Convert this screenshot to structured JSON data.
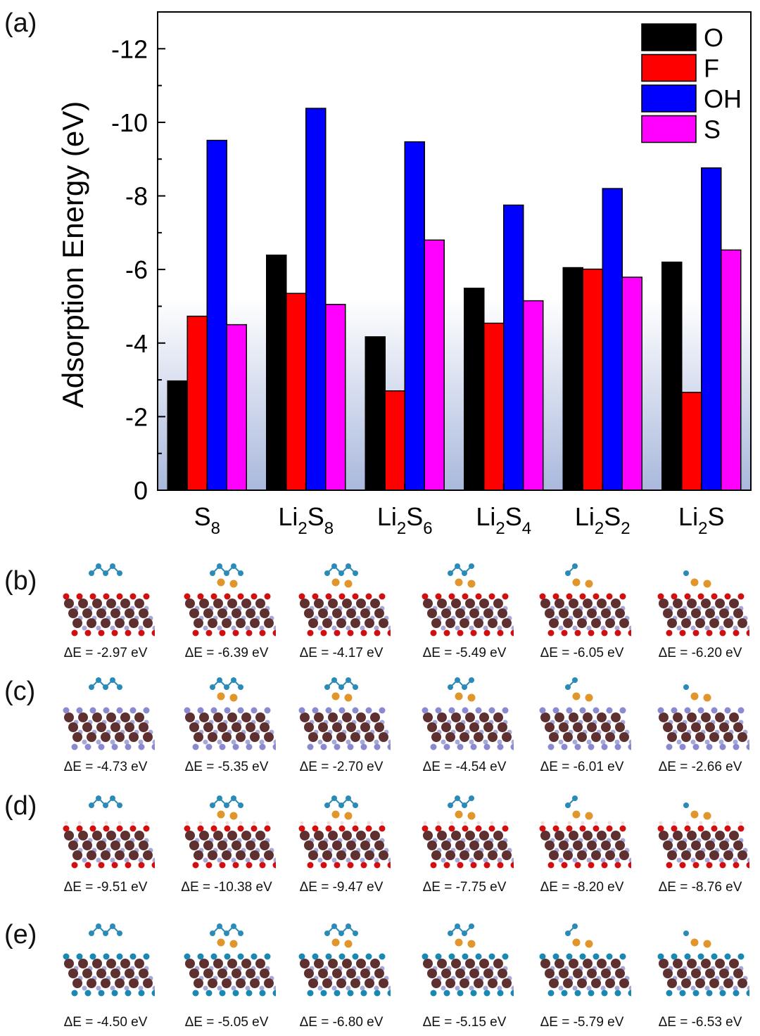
{
  "panel_labels": [
    "(a)",
    "(b)",
    "(c)",
    "(d)",
    "(e)"
  ],
  "chart_data": {
    "type": "bar",
    "title": "",
    "xlabel": "",
    "ylabel": "Adsorption Energy (eV)",
    "ylim": [
      0,
      -13
    ],
    "yticks": [
      0,
      -2,
      -4,
      -6,
      -8,
      -10,
      -12
    ],
    "ytick_labels": [
      "0",
      "-2",
      "-4",
      "-6",
      "-8",
      "-10",
      "-12"
    ],
    "grid": false,
    "legend_position": "top-right",
    "categories": [
      {
        "base": "S",
        "sub": "8",
        "base2": "",
        "sub2": ""
      },
      {
        "base": "Li",
        "sub": "2",
        "base2": "S",
        "sub2": "8"
      },
      {
        "base": "Li",
        "sub": "2",
        "base2": "S",
        "sub2": "6"
      },
      {
        "base": "Li",
        "sub": "2",
        "base2": "S",
        "sub2": "4"
      },
      {
        "base": "Li",
        "sub": "2",
        "base2": "S",
        "sub2": "2"
      },
      {
        "base": "Li",
        "sub": "2",
        "base2": "S",
        "sub2": ""
      }
    ],
    "series": [
      {
        "name": "O",
        "color": "#000000",
        "values": [
          -2.97,
          -6.39,
          -4.17,
          -5.49,
          -6.05,
          -6.2
        ]
      },
      {
        "name": "F",
        "color": "#ff0000",
        "values": [
          -4.73,
          -5.35,
          -2.7,
          -4.54,
          -6.01,
          -2.66
        ]
      },
      {
        "name": "OH",
        "color": "#0000ff",
        "values": [
          -9.51,
          -10.38,
          -9.47,
          -7.75,
          -8.2,
          -8.76
        ]
      },
      {
        "name": "S",
        "color": "#ff00ff",
        "values": [
          -4.5,
          -5.05,
          -6.8,
          -5.15,
          -5.79,
          -6.53
        ]
      }
    ]
  },
  "structure_rows": [
    {
      "termination": "O",
      "labels": [
        "ΔE = -2.97 eV",
        "ΔE = -6.39 eV",
        "ΔE = -4.17 eV",
        "ΔE = -5.49 eV",
        "ΔE = -6.05 eV",
        "ΔE = -6.20 eV"
      ]
    },
    {
      "termination": "F",
      "labels": [
        "ΔE = -4.73 eV",
        "ΔE = -5.35 eV",
        "ΔE = -2.70 eV",
        "ΔE = -4.54 eV",
        "ΔE = -6.01 eV",
        "ΔE = -2.66 eV"
      ]
    },
    {
      "termination": "OH",
      "labels": [
        "ΔE = -9.51 eV",
        "ΔE = -10.38 eV",
        "ΔE = -9.47 eV",
        "ΔE = -7.75 eV",
        "ΔE = -8.20 eV",
        "ΔE = -8.76 eV"
      ]
    },
    {
      "termination": "S",
      "labels": [
        "ΔE = -4.50 eV",
        "ΔE = -5.05 eV",
        "ΔE = -6.80 eV",
        "ΔE = -5.15 eV",
        "ΔE = -5.79 eV",
        "ΔE = -6.53 eV"
      ]
    }
  ],
  "colors": {
    "slab_metal": "#5e3030",
    "slab_c": "#a8a8d8",
    "sulfur": "#2a8ab8",
    "lithium": "#e0962a",
    "oxygen": "#d01010",
    "fluorine": "#8a8ad0",
    "hydrogen": "#f0dede",
    "s_term": "#1a88b0"
  }
}
